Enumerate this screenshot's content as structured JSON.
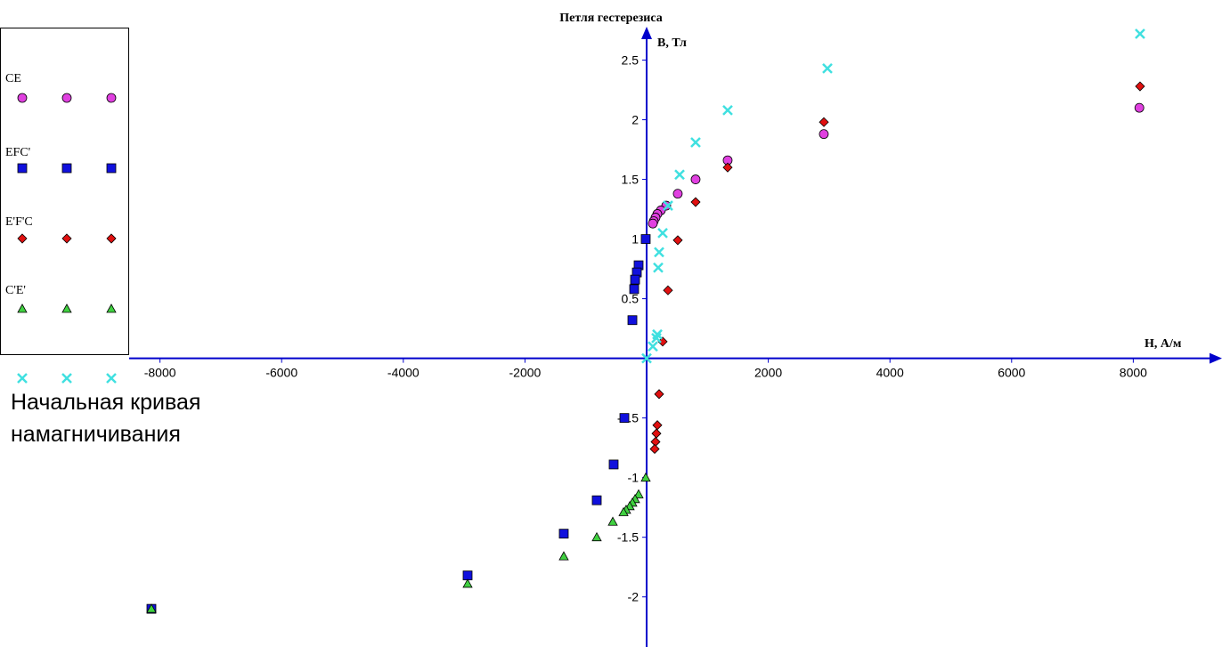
{
  "chart_data": {
    "type": "scatter",
    "title": "Петля гестерезиса",
    "x_label": "H, А/м",
    "y_label": "B, Тл",
    "xlim": [
      -8507,
      9400
    ],
    "ylim": [
      -2.42,
      2.78
    ],
    "xticks": [
      -8000,
      -6000,
      -4000,
      -2000,
      2000,
      4000,
      6000,
      8000
    ],
    "yticks": [
      2.5,
      2,
      1.5,
      1,
      0.5,
      -0.5,
      -1,
      -1.5,
      -2
    ],
    "series": [
      {
        "name": "CE",
        "color": "#e040e0",
        "marker": "circle",
        "x": [
          8100,
          2913,
          1332,
          805,
          512,
          322,
          234,
          176,
          146,
          117,
          102
        ],
        "values": [
          2.1,
          1.88,
          1.66,
          1.5,
          1.38,
          1.28,
          1.24,
          1.21,
          1.18,
          1.15,
          1.13
        ]
      },
      {
        "name": "EFC'",
        "color": "#1010dd",
        "marker": "square",
        "x": [
          -15,
          -132,
          -161,
          -190,
          -205,
          -234,
          -366,
          -542,
          -820,
          -1362,
          -2943,
          -8141
        ],
        "values": [
          1.0,
          0.78,
          0.72,
          0.66,
          0.58,
          0.32,
          -0.5,
          -0.89,
          -1.19,
          -1.47,
          -1.82,
          -2.1
        ]
      },
      {
        "name": "E'F'C",
        "color": "#e01010",
        "marker": "diamond",
        "x": [
          8111,
          2914,
          1332,
          805,
          512,
          351,
          264,
          205,
          176,
          161,
          146,
          132
        ],
        "values": [
          2.28,
          1.98,
          1.6,
          1.31,
          0.99,
          0.57,
          0.14,
          -0.3,
          -0.56,
          -0.63,
          -0.7,
          -0.76
        ]
      },
      {
        "name": "C'E'",
        "color": "#40d040",
        "marker": "triangle",
        "x": [
          -15,
          -132,
          -190,
          -234,
          -278,
          -337,
          -380,
          -556,
          -820,
          -1362,
          -2943,
          -8141
        ],
        "values": [
          -1.0,
          -1.14,
          -1.18,
          -1.21,
          -1.24,
          -1.27,
          -1.29,
          -1.37,
          -1.5,
          -1.66,
          -1.89,
          -2.1
        ]
      },
      {
        "name": "Начальная кривая намагничивания",
        "color": "#40e0e0",
        "marker": "cross",
        "x": [
          0,
          102,
          161,
          176,
          190,
          205,
          264,
          351,
          542,
          805,
          1332,
          2972,
          8111
        ],
        "values": [
          0,
          0.1,
          0.17,
          0.2,
          0.76,
          0.89,
          1.05,
          1.28,
          1.54,
          1.81,
          2.08,
          2.43,
          2.72
        ]
      }
    ]
  }
}
